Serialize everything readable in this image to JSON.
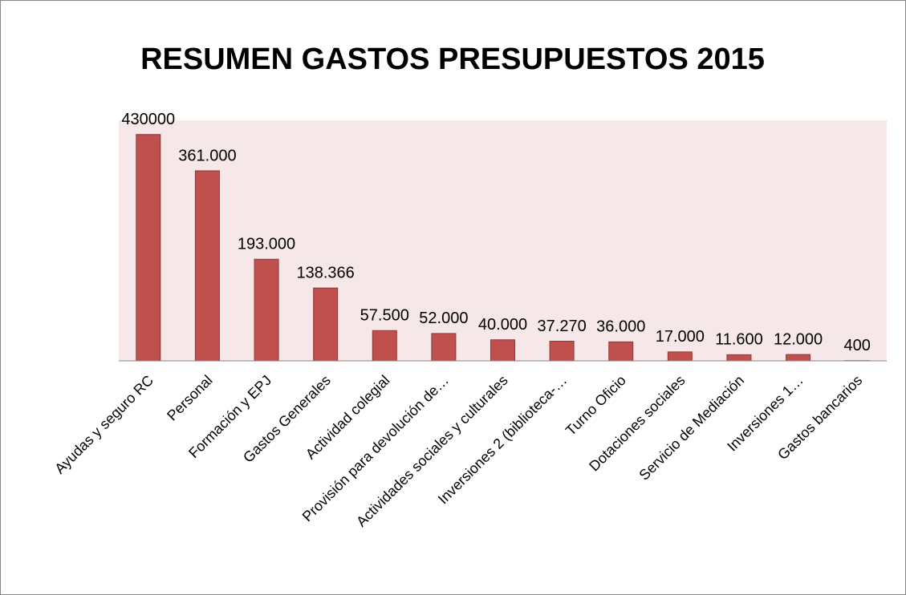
{
  "chart_data": {
    "type": "bar",
    "title": "RESUMEN GASTOS PRESUPUESTOS 2015",
    "categories": [
      "Ayudas y seguro RC",
      "Personal",
      "Formación  y EPJ",
      "Gastos Generales",
      "Actividad colegial",
      "Provisión para devolución de…",
      "Actividades sociales y culturales",
      "Inversiones 2 (biblioteca-…",
      "Turno Oficio",
      "Dotaciones sociales",
      "Servicio de Mediación",
      "Inversiones 1…",
      "Gastos bancarios"
    ],
    "values": [
      430000,
      361000,
      193000,
      138366,
      57500,
      52000,
      40000,
      37270,
      36000,
      17000,
      11600,
      12000,
      400
    ],
    "value_labels": [
      "430000",
      "361.000",
      "193.000",
      "138.366",
      "57.500",
      "52.000",
      "40.000",
      "37.270",
      "36.000",
      "17.000",
      "11.600",
      "12.000",
      "400"
    ],
    "color": "#c0504d",
    "plot_background": "#f6e8e8",
    "ylim": [
      0,
      457000
    ]
  }
}
